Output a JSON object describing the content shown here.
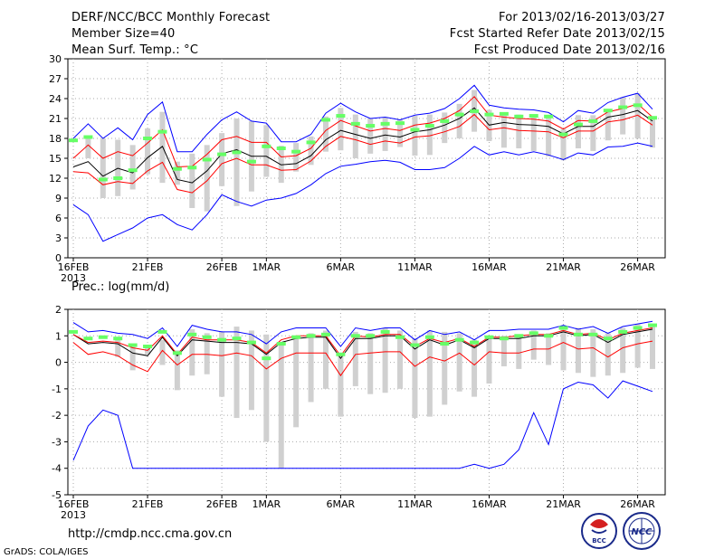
{
  "header": {
    "title": "DERF/NCC/BCC Monthly Forecast",
    "member_size": "Member Size=40",
    "variable": "Mean Surf. Temp.: °C",
    "forecast_range": "For 2013/02/16-2013/03/27",
    "started_refer": "Fcst Started Refer Date 2013/02/15",
    "produced": "Fcst Produced Date 2013/02/16"
  },
  "footer": {
    "url": "http://cmdp.ncc.cma.gov.cn",
    "grads": "GrADS: COLA/IGES",
    "logo_bcc": "BCC",
    "logo_ncc": "NCC"
  },
  "colors": {
    "max_line": "#0000ff",
    "min_line": "#0000ff",
    "mean_line": "#000000",
    "lower_line": "#ff0000",
    "upper_line": "#ff0000",
    "range_bar": "#d0d0d0",
    "marker": "#66ff66",
    "grid": "#aaaaaa"
  },
  "chart_data": [
    {
      "type": "line",
      "name": "temperature-panel",
      "title": "Mean Surf. Temp.: °C",
      "x_start": "16FEB2013",
      "x_tick_labels": [
        "16FEB",
        "21FEB",
        "26FEB",
        "1MAR",
        "6MAR",
        "11MAR",
        "16MAR",
        "21MAR",
        "26MAR"
      ],
      "x_tick_days": [
        1,
        6,
        11,
        14,
        19,
        24,
        29,
        34,
        39
      ],
      "x_year_label": "2013",
      "ylim": [
        0,
        30
      ],
      "y_ticks": [
        0,
        3,
        6,
        9,
        12,
        15,
        18,
        21,
        24,
        27,
        30
      ],
      "days": 40,
      "series": [
        {
          "name": "max",
          "color": "blue",
          "values": [
            18,
            20.2,
            18,
            19.6,
            17.8,
            21.6,
            23.5,
            16,
            16,
            18.6,
            20.8,
            22,
            20.6,
            20.3,
            17.5,
            17.5,
            18.6,
            21.8,
            23.3,
            22,
            21,
            21.2,
            20.8,
            21.5,
            21.8,
            22.5,
            24,
            26,
            23,
            22.6,
            22.4,
            22.3,
            21.9,
            20.5,
            22.2,
            21.8,
            23.4,
            24.2,
            24.8,
            22.4
          ]
        },
        {
          "name": "upper",
          "color": "red",
          "values": [
            15,
            17,
            15,
            16,
            15.4,
            17.3,
            19.3,
            13.7,
            13.8,
            15.6,
            17.8,
            18.3,
            17.4,
            17.4,
            15.2,
            15.4,
            16.5,
            19.2,
            20.7,
            19.9,
            19.1,
            19.5,
            19.2,
            20,
            20.3,
            21,
            22.2,
            24.3,
            21.5,
            21.2,
            21,
            20.9,
            20.6,
            19.4,
            20.7,
            20.6,
            22,
            22.5,
            23.2,
            21.2
          ]
        },
        {
          "name": "mean",
          "color": "black",
          "values": [
            13.7,
            14.5,
            12.3,
            13.5,
            12.8,
            15.1,
            16.8,
            11.8,
            11.3,
            13.1,
            15.7,
            16.3,
            15.3,
            15.3,
            14,
            14.2,
            15.4,
            17.8,
            19.2,
            18.6,
            18,
            18.5,
            18.2,
            19,
            19.3,
            20,
            21,
            22.6,
            20,
            20.4,
            20.1,
            20,
            19.8,
            18.7,
            19.8,
            19.8,
            21.2,
            21.6,
            22.2,
            20.6
          ]
        },
        {
          "name": "lower",
          "color": "red",
          "values": [
            13,
            12.8,
            11,
            11.5,
            11.2,
            13.1,
            14.4,
            10.3,
            9.8,
            11.6,
            14.2,
            15,
            14,
            14,
            13.2,
            13.3,
            14.6,
            16.8,
            18.3,
            17.8,
            17.1,
            17.6,
            17.3,
            18.2,
            18.4,
            19,
            19.8,
            21.6,
            19.3,
            19.6,
            19.2,
            19.1,
            19,
            18.1,
            19.1,
            19.1,
            20.5,
            20.8,
            21.5,
            20
          ]
        },
        {
          "name": "min",
          "color": "blue",
          "values": [
            8,
            6.5,
            2.5,
            3.5,
            4.5,
            6,
            6.5,
            5,
            4.2,
            6.5,
            9.5,
            8.5,
            7.8,
            8.7,
            9,
            9.7,
            11,
            12.7,
            13.8,
            14.1,
            14.5,
            14.7,
            14.4,
            13.3,
            13.3,
            13.6,
            15,
            16.8,
            15.5,
            16,
            15.5,
            16,
            15.5,
            14.8,
            15.8,
            15.5,
            16.7,
            16.8,
            17.3,
            16.8
          ]
        },
        {
          "name": "range_low",
          "color": "gray-bar",
          "values": [
            null,
            15,
            9,
            9.3,
            10.3,
            12.6,
            11.3,
            11,
            7.5,
            7,
            10.8,
            7.8,
            10,
            12.2,
            11.3,
            13,
            14,
            16,
            16.2,
            15,
            15.7,
            16.1,
            16.7,
            15.4,
            15.5,
            17.3,
            18,
            19,
            17.6,
            16.6,
            16.5,
            16.1,
            15.3,
            14.7,
            16.5,
            16.1,
            17.7,
            18.6,
            18,
            16.6
          ]
        },
        {
          "name": "range_high",
          "color": "gray-bar",
          "values": [
            null,
            18.3,
            18,
            17.8,
            17,
            19.5,
            22,
            14.5,
            15.7,
            17,
            18.8,
            21,
            20.6,
            20,
            16.9,
            17.3,
            18.3,
            21.3,
            22.6,
            21.6,
            21,
            21.2,
            20.8,
            21.4,
            21.6,
            21.9,
            23.2,
            25.3,
            22.3,
            21.8,
            21.6,
            21.6,
            21.1,
            19.4,
            21.5,
            21.5,
            22.4,
            24.2,
            24.8,
            21.2
          ]
        },
        {
          "name": "marker",
          "color": "green",
          "values": [
            17.7,
            18.2,
            11.8,
            12,
            13.2,
            18,
            19,
            13.4,
            13.6,
            14.8,
            15.6,
            15.9,
            14.5,
            16.8,
            16.5,
            16,
            17.4,
            20.8,
            21.4,
            20.2,
            19.9,
            20.2,
            20.3,
            19.3,
            19.9,
            20.6,
            21.6,
            22.1,
            21.6,
            21.7,
            21.3,
            21.4,
            21.3,
            18.6,
            20.1,
            20.6,
            22.2,
            22.7,
            23,
            21.1
          ]
        }
      ]
    },
    {
      "type": "line",
      "name": "precipitation-panel",
      "title": "Prec.: log(mm/d)",
      "x_start": "16FEB2013",
      "x_tick_labels": [
        "16FEB",
        "21FEB",
        "26FEB",
        "1MAR",
        "6MAR",
        "11MAR",
        "16MAR",
        "21MAR",
        "26MAR"
      ],
      "x_tick_days": [
        1,
        6,
        11,
        14,
        19,
        24,
        29,
        34,
        39
      ],
      "x_year_label": "2013",
      "ylim": [
        -5,
        2
      ],
      "y_ticks": [
        -5,
        -4,
        -3,
        -2,
        -1,
        0,
        1,
        2
      ],
      "days": 40,
      "series": [
        {
          "name": "max",
          "color": "blue",
          "values": [
            1.5,
            1.15,
            1.2,
            1.1,
            1.05,
            0.9,
            1.3,
            0.6,
            1.4,
            1.25,
            1.15,
            1.15,
            1.05,
            0.7,
            1.15,
            1.3,
            1.3,
            1.3,
            0.6,
            1.3,
            1.2,
            1.3,
            1.3,
            0.85,
            1.2,
            1.05,
            1.15,
            0.85,
            1.2,
            1.2,
            1.25,
            1.25,
            1.25,
            1.4,
            1.25,
            1.35,
            1.1,
            1.35,
            1.45,
            1.55
          ]
        },
        {
          "name": "upper",
          "color": "red",
          "values": [
            1.05,
            0.75,
            0.8,
            0.75,
            0.55,
            0.45,
            1,
            0.3,
            0.95,
            0.85,
            0.85,
            0.85,
            0.75,
            0.35,
            0.85,
            1,
            1,
            1,
            0.25,
            1,
            0.95,
            1.05,
            1.05,
            0.6,
            0.9,
            0.75,
            0.9,
            0.6,
            0.95,
            0.95,
            1,
            1.05,
            1.05,
            1.2,
            1.05,
            1.1,
            0.85,
            1.1,
            1.2,
            1.3
          ]
        },
        {
          "name": "mean",
          "color": "black",
          "values": [
            1.05,
            0.7,
            0.75,
            0.7,
            0.35,
            0.25,
            0.95,
            0.25,
            0.85,
            0.8,
            0.75,
            0.75,
            0.7,
            0.3,
            0.75,
            0.9,
            0.95,
            0.95,
            0.15,
            0.9,
            0.9,
            1,
            1,
            0.5,
            0.85,
            0.65,
            0.85,
            0.55,
            0.9,
            0.9,
            0.9,
            1,
            1,
            1.15,
            1,
            1.05,
            0.75,
            1.05,
            1.15,
            1.25
          ]
        },
        {
          "name": "lower",
          "color": "red",
          "values": [
            0.75,
            0.3,
            0.4,
            0.25,
            -0.1,
            -0.35,
            0.45,
            -0.1,
            0.3,
            0.3,
            0.25,
            0.35,
            0.25,
            -0.25,
            0.15,
            0.35,
            0.35,
            0.35,
            -0.5,
            0.3,
            0.35,
            0.4,
            0.4,
            -0.15,
            0.2,
            0.05,
            0.35,
            -0.1,
            0.4,
            0.35,
            0.35,
            0.5,
            0.5,
            0.75,
            0.5,
            0.55,
            0.2,
            0.55,
            0.7,
            0.8
          ]
        },
        {
          "name": "min",
          "color": "blue",
          "values": [
            -3.7,
            -2.4,
            -1.8,
            -2,
            -4,
            -4,
            -4,
            -4,
            -4,
            -4,
            -4,
            -4,
            -4,
            -4,
            -4,
            -4,
            -4,
            -4,
            -4,
            -4,
            -4,
            -4,
            -4,
            -4,
            -4,
            -4,
            -4,
            -3.85,
            -4,
            -3.85,
            -3.3,
            -1.9,
            -3.1,
            -1,
            -0.75,
            -0.85,
            -1.35,
            -0.7,
            -0.9,
            -1.1
          ]
        },
        {
          "name": "range_low",
          "color": "gray-bar",
          "values": [
            null,
            null,
            null,
            0.2,
            -0.3,
            0.3,
            -0.1,
            -1.05,
            -0.5,
            -0.45,
            -1.3,
            -2.1,
            -1.8,
            -3,
            -4,
            -2.45,
            -1.5,
            -1,
            -2.05,
            -0.9,
            -1.2,
            -1.15,
            -1,
            -2.1,
            -2.05,
            -1.6,
            -1.1,
            -1.3,
            -0.8,
            -0.15,
            -0.25,
            0.1,
            -0.1,
            -0.3,
            -0.4,
            -0.55,
            -0.5,
            -0.4,
            -0.2,
            -0.25
          ]
        },
        {
          "name": "range_high",
          "color": "gray-bar",
          "values": [
            null,
            null,
            null,
            0.95,
            0.7,
            0.65,
            0.85,
            0.45,
            1.25,
            1.1,
            1.15,
            1.35,
            1.2,
            1.05,
            0.75,
            0.95,
            1.1,
            1.2,
            0.3,
            1.15,
            1.1,
            1.3,
            1.2,
            0.9,
            1.2,
            1.15,
            1.1,
            0.85,
            1,
            1,
            1,
            1.2,
            1.1,
            1.35,
            1.3,
            1.25,
            1.1,
            1.3,
            1.45,
            1.45
          ]
        },
        {
          "name": "marker",
          "color": "green",
          "values": [
            1.15,
            0.9,
            0.95,
            0.9,
            0.65,
            0.6,
            1.15,
            0.35,
            1.05,
            0.95,
            0.85,
            0.9,
            0.75,
            0.15,
            0.7,
            0.95,
            1,
            1.05,
            0.3,
            1,
            1,
            1.15,
            0.95,
            0.65,
            0.95,
            0.7,
            0.85,
            0.75,
            0.95,
            0.9,
            1,
            1.1,
            1,
            1.3,
            1.05,
            1.05,
            0.9,
            1.15,
            1.3,
            1.4
          ]
        }
      ]
    }
  ]
}
